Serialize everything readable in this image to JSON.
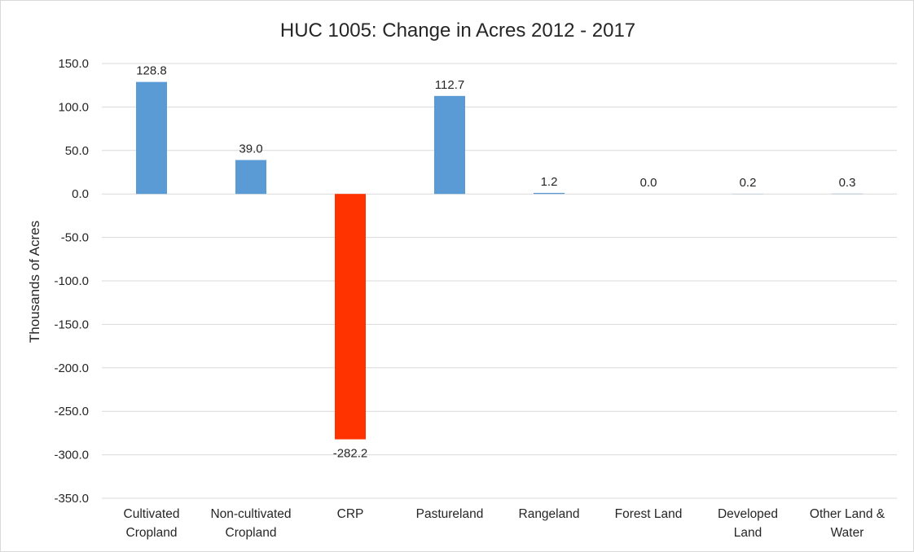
{
  "chart_data": {
    "type": "bar",
    "title": "HUC 1005: Change in Acres 2012 - 2017",
    "xlabel": "",
    "ylabel": "Thousands of Acres",
    "ylim": [
      -350,
      150
    ],
    "yticks": [
      "150.0",
      "100.0",
      "50.0",
      "0.0",
      "-50.0",
      "-100.0",
      "-150.0",
      "-200.0",
      "-250.0",
      "-300.0",
      "-350.0"
    ],
    "grid": true,
    "legend": "none",
    "categories": [
      [
        "Cultivated",
        "Cropland"
      ],
      [
        "Non-cultivated",
        "Cropland"
      ],
      [
        "CRP"
      ],
      [
        "Pastureland"
      ],
      [
        "Rangeland"
      ],
      [
        "Forest Land"
      ],
      [
        "Developed",
        "Land"
      ],
      [
        "Other Land &",
        "Water"
      ]
    ],
    "values": [
      128.8,
      39.0,
      -282.2,
      112.7,
      1.2,
      0.0,
      0.2,
      0.3
    ],
    "data_labels": [
      "128.8",
      "39.0",
      "-282.2",
      "112.7",
      "1.2",
      "0.0",
      "0.2",
      "0.3"
    ],
    "colors": {
      "positive": "#5b9bd5",
      "negative": "#ff3300"
    }
  }
}
